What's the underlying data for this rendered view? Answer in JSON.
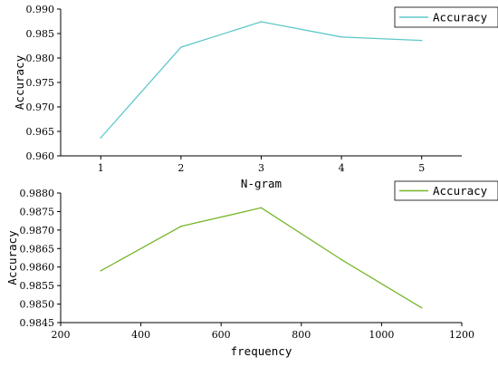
{
  "chart_data": [
    {
      "type": "line",
      "xlabel": "N-gram",
      "ylabel": "Accuracy",
      "x": [
        1,
        2,
        3,
        4,
        5
      ],
      "xlim": [
        0.5,
        5.5
      ],
      "ylim": [
        0.96,
        0.99
      ],
      "xticks": [
        "1",
        "2",
        "3",
        "4",
        "5"
      ],
      "yticks": [
        "0.960",
        "0.965",
        "0.970",
        "0.975",
        "0.980",
        "0.985",
        "0.990"
      ],
      "legend_position": "top-right",
      "series": [
        {
          "name": "Accuracy",
          "color": "#5fc7c9",
          "values": [
            0.9637,
            0.9822,
            0.9874,
            0.9843,
            0.9836
          ]
        }
      ]
    },
    {
      "type": "line",
      "xlabel": "frequency",
      "ylabel": "Accuracy",
      "x": [
        300,
        500,
        700,
        900,
        1100
      ],
      "xlim": [
        200,
        1200
      ],
      "ylim": [
        0.9845,
        0.988
      ],
      "xticks": [
        "200",
        "400",
        "600",
        "800",
        "1000",
        "1200"
      ],
      "yticks": [
        "0.9845",
        "0.9850",
        "0.9855",
        "0.9860",
        "0.9865",
        "0.9870",
        "0.9875",
        "0.9880"
      ],
      "legend_position": "top-right",
      "series": [
        {
          "name": "Accuracy",
          "color": "#76b62a",
          "values": [
            0.9859,
            0.9871,
            0.9876,
            0.9862,
            0.9849
          ]
        }
      ]
    }
  ]
}
